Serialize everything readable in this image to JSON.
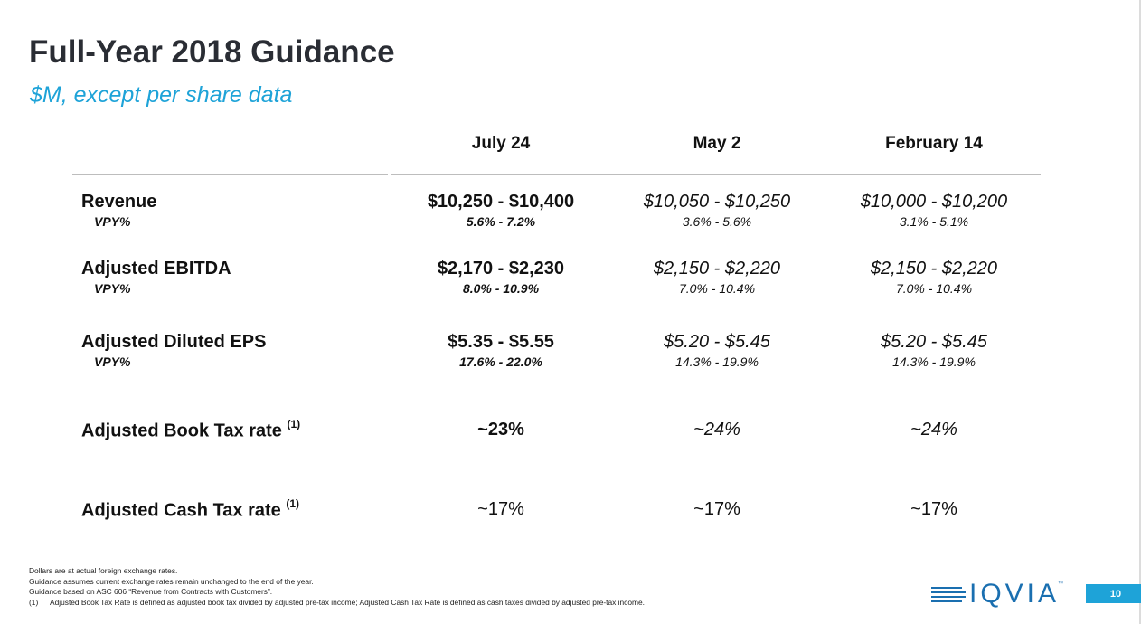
{
  "title": "Full-Year 2018 Guidance",
  "subtitle": "$M, except per share data",
  "columns": [
    "July 24",
    "May 2",
    "February 14"
  ],
  "rows": [
    {
      "label": "Revenue",
      "sub_label": "VPY%",
      "values": [
        "$10,250 - $10,400",
        "$10,050 - $10,250",
        "$10,000 - $10,200"
      ],
      "sub_values": [
        "5.6% - 7.2%",
        "3.6% - 5.6%",
        "3.1% - 5.1%"
      ]
    },
    {
      "label": "Adjusted EBITDA",
      "sub_label": "VPY%",
      "values": [
        "$2,170 - $2,230",
        "$2,150 - $2,220",
        "$2,150 - $2,220"
      ],
      "sub_values": [
        "8.0% - 10.9%",
        "7.0% - 10.4%",
        "7.0% - 10.4%"
      ]
    },
    {
      "label": "Adjusted Diluted EPS",
      "sub_label": "VPY%",
      "values": [
        "$5.35 - $5.55",
        "$5.20 - $5.45",
        "$5.20 - $5.45"
      ],
      "sub_values": [
        "17.6% - 22.0%",
        "14.3% - 19.9%",
        "14.3% - 19.9%"
      ]
    },
    {
      "label": "Adjusted Book Tax rate",
      "footnote": "(1)",
      "values": [
        "~23%",
        "~24%",
        "~24%"
      ]
    },
    {
      "label": "Adjusted Cash Tax rate",
      "footnote": "(1)",
      "values": [
        "~17%",
        "~17%",
        "~17%"
      ]
    }
  ],
  "footnotes": {
    "line1": "Dollars are at actual foreign exchange rates.",
    "line2": "Guidance assumes current exchange rates remain unchanged to the end of the year.",
    "line3": "Guidance based on ASC 606 “Revenue from Contracts with Customers”.",
    "note1_num": "(1)",
    "note1_text": "Adjusted Book Tax Rate is defined as adjusted book tax divided by adjusted pre-tax income; Adjusted Cash Tax Rate is defined as cash taxes divided by adjusted pre-tax income."
  },
  "logo": {
    "text": "IQVIA",
    "tm": "™",
    "color": "#1a6fb0"
  },
  "page_number": "10",
  "colors": {
    "accent": "#1ea3d8",
    "title": "#2a2d34"
  }
}
